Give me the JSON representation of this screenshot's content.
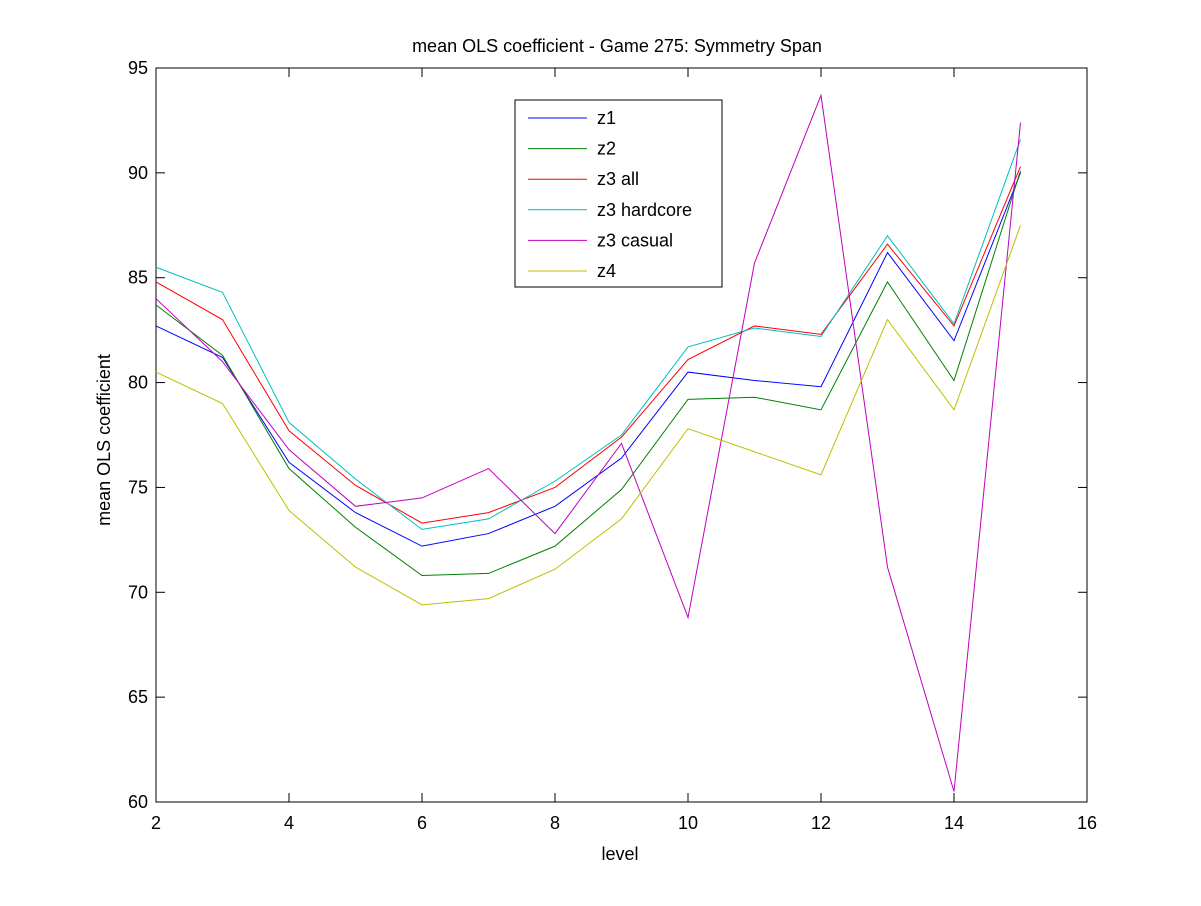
{
  "chart_data": {
    "type": "line",
    "title": "mean OLS coefficient - Game 275: Symmetry Span",
    "xlabel": "level",
    "ylabel": "mean OLS coefficient",
    "xlim": [
      2,
      16
    ],
    "ylim": [
      60,
      95
    ],
    "xticks": [
      2,
      4,
      6,
      8,
      10,
      12,
      14,
      16
    ],
    "yticks": [
      60,
      65,
      70,
      75,
      80,
      85,
      90,
      95
    ],
    "grid": false,
    "legend_position": "top-center",
    "x": [
      2,
      3,
      4,
      5,
      6,
      7,
      8,
      9,
      10,
      11,
      12,
      13,
      14,
      15
    ],
    "series": [
      {
        "name": "z1",
        "color": "#0000ff",
        "values": [
          82.7,
          81.2,
          76.2,
          73.8,
          72.2,
          72.8,
          74.1,
          76.4,
          80.5,
          80.1,
          79.8,
          86.2,
          82.0,
          90.0
        ]
      },
      {
        "name": "z2",
        "color": "#008000",
        "values": [
          83.7,
          81.3,
          75.9,
          73.1,
          70.8,
          70.9,
          72.2,
          74.9,
          79.2,
          79.3,
          78.7,
          84.8,
          80.1,
          90.1
        ]
      },
      {
        "name": "z3 all",
        "color": "#ff0000",
        "values": [
          84.8,
          83.0,
          77.7,
          75.1,
          73.3,
          73.8,
          75.0,
          77.4,
          81.1,
          82.7,
          82.3,
          86.6,
          82.7,
          90.3
        ]
      },
      {
        "name": "z3 hardcore",
        "color": "#00bfbf",
        "values": [
          85.5,
          84.3,
          78.1,
          75.4,
          73.0,
          73.5,
          75.3,
          77.5,
          81.7,
          82.6,
          82.2,
          87.0,
          82.8,
          91.6
        ]
      },
      {
        "name": "z3 casual",
        "color": "#bf00bf",
        "values": [
          84.0,
          81.0,
          76.8,
          74.1,
          74.5,
          75.9,
          72.8,
          77.1,
          68.8,
          85.7,
          93.7,
          71.2,
          60.5,
          92.4
        ]
      },
      {
        "name": "z4",
        "color": "#bfbf00",
        "values": [
          80.5,
          79.0,
          73.9,
          71.2,
          69.4,
          69.7,
          71.1,
          73.5,
          77.8,
          76.7,
          75.6,
          83.0,
          78.7,
          87.5
        ]
      }
    ]
  }
}
